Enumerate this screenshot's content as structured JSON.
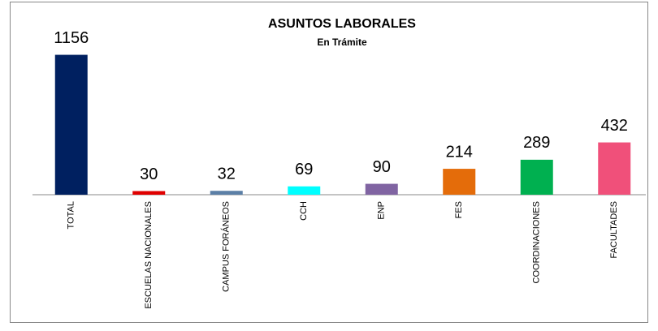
{
  "chart_data": {
    "type": "bar",
    "title": "ASUNTOS LABORALES",
    "subtitle": "En Trámite",
    "categories": [
      "TOTAL",
      "ESCUELAS NACIONALES",
      "CAMPUS FORÁNEOS",
      "CCH",
      "ENP",
      "FES",
      "COORDINACIONES",
      "FACULTADES"
    ],
    "values": [
      1156,
      30,
      32,
      69,
      90,
      214,
      289,
      432
    ],
    "colors": [
      "#002060",
      "#e00000",
      "#5b7fa6",
      "#00ffff",
      "#8064a2",
      "#e46c0a",
      "#00b050",
      "#f0507a"
    ],
    "ylim": [
      0,
      1200
    ]
  }
}
